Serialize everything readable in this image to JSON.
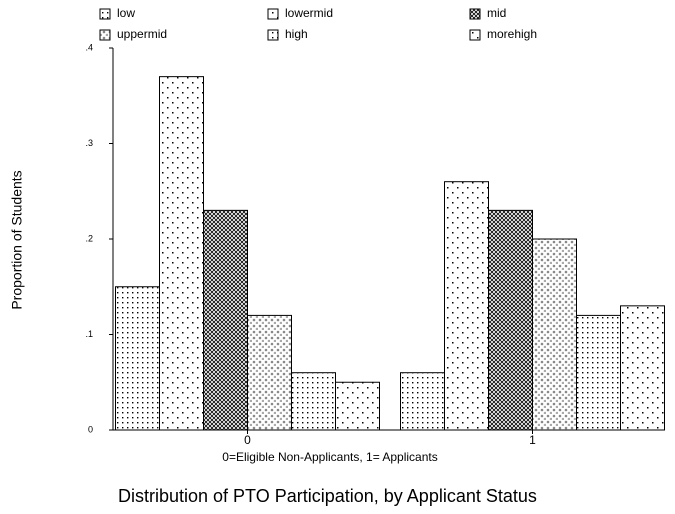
{
  "chart_data": {
    "type": "bar",
    "title": "Distribution of PTO Participation, by Applicant Status",
    "x_label": "0=Eligible Non-Applicants, 1= Applicants",
    "y_label": "Proportion of Students",
    "categories": [
      "0",
      "1"
    ],
    "series": [
      {
        "name": "low",
        "color": "#000000",
        "pattern": "dense-dots",
        "values": [
          0.15,
          0.06
        ]
      },
      {
        "name": "lowermid",
        "color": "#000000",
        "pattern": "sparse-dots",
        "values": [
          0.37,
          0.26
        ]
      },
      {
        "name": "mid",
        "color": "#000000",
        "pattern": "crosshatch",
        "values": [
          0.23,
          0.23
        ]
      },
      {
        "name": "uppermid",
        "color": "#888888",
        "pattern": "gray-dots",
        "values": [
          0.12,
          0.2
        ]
      },
      {
        "name": "high",
        "color": "#000000",
        "pattern": "dense-dots",
        "values": [
          0.06,
          0.12
        ]
      },
      {
        "name": "morehigh",
        "color": "#000000",
        "pattern": "sparse-dots",
        "values": [
          0.05,
          0.13
        ]
      }
    ],
    "ylim": [
      0,
      0.4
    ],
    "yticks": [
      0,
      {
        "value": 0.1,
        "label": ".1"
      },
      {
        "value": 0.2,
        "label": ".2"
      },
      {
        "value": 0.3,
        "label": ".3"
      },
      {
        "value": 0.4,
        "label": ".4"
      }
    ],
    "grid": false
  }
}
